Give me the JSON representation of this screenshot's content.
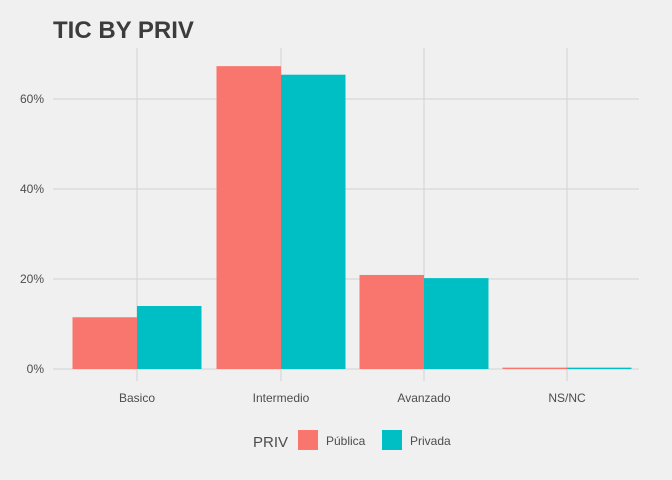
{
  "chart_data": {
    "type": "bar",
    "title": "TIC BY PRIV",
    "xlabel": "",
    "ylabel": "",
    "categories": [
      "Basico",
      "Intermedio",
      "Avanzado",
      "NS/NC"
    ],
    "series": [
      {
        "name": "Pública",
        "color": "#f8766d",
        "values": [
          11.5,
          67.3,
          20.9,
          0.3
        ]
      },
      {
        "name": "Privada",
        "color": "#00bfc4",
        "values": [
          14.0,
          65.4,
          20.2,
          0.3
        ]
      }
    ],
    "ylim": [
      0,
      70
    ],
    "yticks": [
      0,
      20,
      40,
      60
    ],
    "ytick_labels": [
      "0%",
      "20%",
      "40%",
      "60%"
    ],
    "legend": {
      "title": "PRIV",
      "position": "bottom"
    },
    "grid": true,
    "background": "#f0f0f0"
  }
}
